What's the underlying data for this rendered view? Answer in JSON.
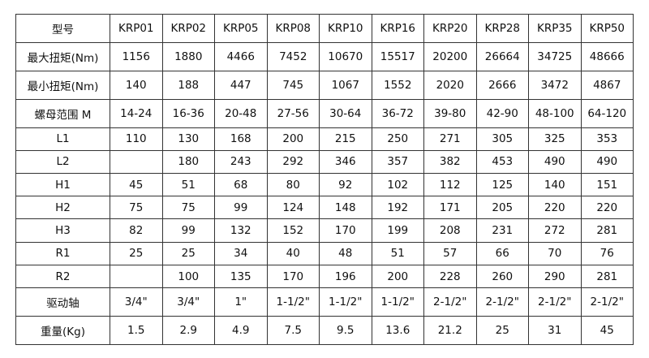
{
  "table": {
    "header": [
      "型号",
      "KRP01",
      "KRP02",
      "KRP05",
      "KRP08",
      "KRP10",
      "KRP16",
      "KRP20",
      "KRP28",
      "KRP35",
      "KRP50"
    ],
    "rows": [
      [
        "最大扭矩(Nm)",
        "1156",
        "1880",
        "4466",
        "7452",
        "10670",
        "15517",
        "20200",
        "26664",
        "34725",
        "48666"
      ],
      [
        "最小扭矩(Nm)",
        "140",
        "188",
        "447",
        "745",
        "1067",
        "1552",
        "2020",
        "2666",
        "3472",
        "4867"
      ],
      [
        "螺母范围 M",
        "14-24",
        "16-36",
        "20-48",
        "27-56",
        "30-64",
        "36-72",
        "39-80",
        "42-90",
        "48-100",
        "64-120"
      ],
      [
        "L1",
        "110",
        "130",
        "168",
        "200",
        "215",
        "250",
        "271",
        "305",
        "325",
        "353"
      ],
      [
        "L2",
        "",
        "180",
        "243",
        "292",
        "346",
        "357",
        "382",
        "453",
        "490",
        "490"
      ],
      [
        "H1",
        "45",
        "51",
        "68",
        "80",
        "92",
        "102",
        "112",
        "125",
        "140",
        "151"
      ],
      [
        "H2",
        "75",
        "75",
        "99",
        "124",
        "148",
        "192",
        "171",
        "205",
        "220",
        "220"
      ],
      [
        "H3",
        "82",
        "99",
        "132",
        "152",
        "170",
        "199",
        "208",
        "231",
        "272",
        "281"
      ],
      [
        "R1",
        "25",
        "25",
        "34",
        "40",
        "48",
        "51",
        "57",
        "66",
        "70",
        "76"
      ],
      [
        "R2",
        "",
        "100",
        "135",
        "170",
        "196",
        "200",
        "228",
        "260",
        "290",
        "281"
      ],
      [
        "驱动轴",
        "3/4\"",
        "3/4\"",
        "1\"",
        "1-1/2\"",
        "1-1/2\"",
        "1-1/2\"",
        "2-1/2\"",
        "2-1/2\"",
        "2-1/2\"",
        "2-1/2\""
      ],
      [
        "重量(Kg)",
        "1.5",
        "2.9",
        "4.9",
        "7.5",
        "9.5",
        "13.6",
        "21.2",
        "25",
        "31",
        "45"
      ]
    ]
  }
}
